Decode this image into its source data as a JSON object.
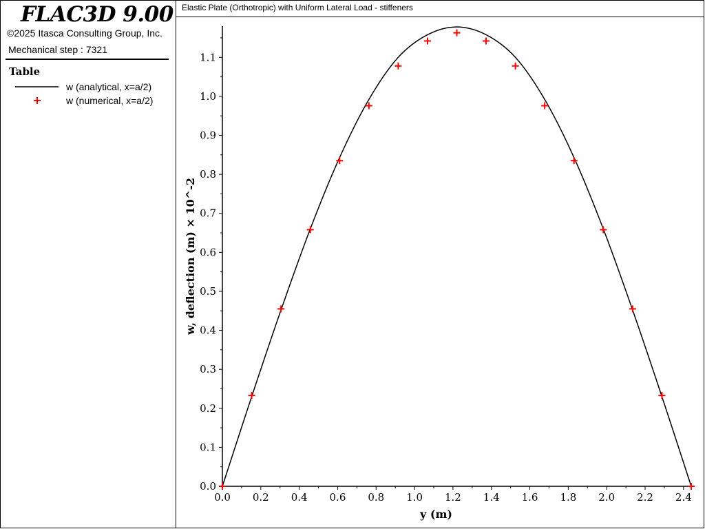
{
  "app": {
    "title": "FLAC3D 9.00",
    "copyright": "©2025 Itasca Consulting Group, Inc.",
    "step": "Mechanical step : 7321"
  },
  "legend": {
    "title": "Table",
    "items": [
      {
        "label": "w (analytical, x=a/2)",
        "symbol": "line",
        "color": "#000000"
      },
      {
        "label": "w (numerical, x=a/2)",
        "symbol": "plus",
        "color": "#ff0000"
      }
    ]
  },
  "chart_data": {
    "type": "line",
    "title": "Elastic Plate (Orthotropic) with Uniform Lateral Load - stiffeners",
    "xlabel": "y (m)",
    "ylabel": "w, deflection (m) × 10^-2",
    "xlim": [
      0.0,
      2.44
    ],
    "ylim": [
      0.0,
      1.18
    ],
    "xticks": [
      "0.0",
      "0.2",
      "0.4",
      "0.6",
      "0.8",
      "1.0",
      "1.2",
      "1.4",
      "1.6",
      "1.8",
      "2.0",
      "2.2",
      "2.4"
    ],
    "yticks": [
      "0.0",
      "0.1",
      "0.2",
      "0.3",
      "0.4",
      "0.5",
      "0.6",
      "0.7",
      "0.8",
      "0.9",
      "1.0",
      "1.1"
    ],
    "grid": false,
    "series": [
      {
        "name": "w (analytical, x=a/2)",
        "style": "line",
        "color": "#000000",
        "x": [
          0.0,
          0.1525,
          0.305,
          0.4575,
          0.61,
          0.7625,
          0.915,
          1.0675,
          1.22,
          1.3725,
          1.525,
          1.6775,
          1.83,
          1.9825,
          2.135,
          2.2875,
          2.44
        ],
        "y": [
          0.0,
          0.23,
          0.452,
          0.66,
          0.843,
          0.992,
          1.1,
          1.158,
          1.178,
          1.158,
          1.1,
          0.992,
          0.843,
          0.66,
          0.452,
          0.23,
          0.0
        ]
      },
      {
        "name": "w (numerical, x=a/2)",
        "style": "plus",
        "color": "#ff0000",
        "x": [
          0.0,
          0.1525,
          0.305,
          0.4575,
          0.61,
          0.7625,
          0.915,
          1.0675,
          1.22,
          1.3725,
          1.525,
          1.6775,
          1.83,
          1.9825,
          2.135,
          2.2875,
          2.44
        ],
        "y": [
          0.0,
          0.233,
          0.455,
          0.658,
          0.835,
          0.976,
          1.078,
          1.142,
          1.163,
          1.142,
          1.078,
          0.976,
          0.835,
          0.658,
          0.455,
          0.233,
          0.0
        ]
      }
    ]
  }
}
